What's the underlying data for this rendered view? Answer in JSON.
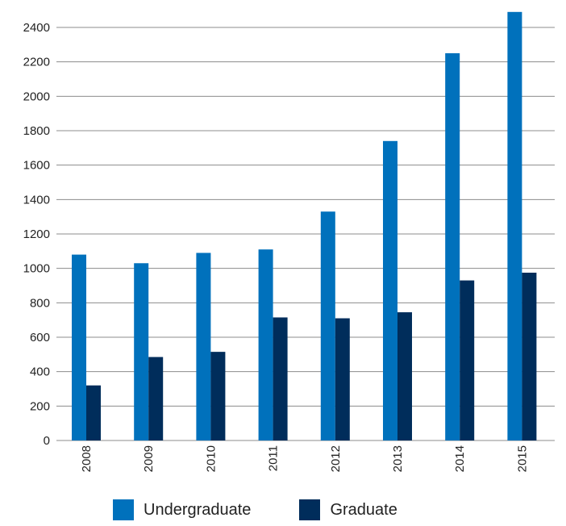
{
  "chart_data": {
    "type": "bar",
    "title": "",
    "xlabel": "",
    "ylabel": "",
    "categories": [
      "2008",
      "2009",
      "2010",
      "2011",
      "2012",
      "2013",
      "2014",
      "2015"
    ],
    "series": [
      {
        "name": "Undergraduate",
        "color": "#0071bc",
        "values": [
          1080,
          1030,
          1090,
          1110,
          1330,
          1740,
          2250,
          2490
        ]
      },
      {
        "name": "Graduate",
        "color": "#002d5b",
        "values": [
          320,
          485,
          515,
          715,
          710,
          745,
          930,
          975
        ]
      }
    ],
    "ylim": [
      0,
      2400
    ],
    "yticks": [
      0,
      200,
      400,
      600,
      800,
      1000,
      1200,
      1400,
      1600,
      1800,
      2000,
      2200,
      2400
    ],
    "grid": true,
    "legend_position": "bottom"
  }
}
